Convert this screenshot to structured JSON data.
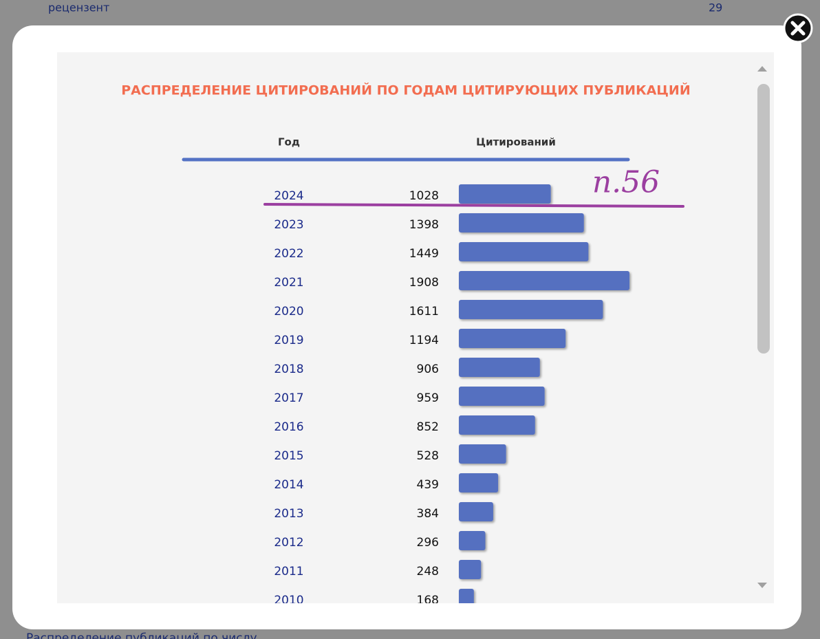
{
  "background": {
    "top_label": "рецензент",
    "top_value": "29",
    "bottom_label": "Распределение публикаций по числу"
  },
  "modal": {
    "title": "РАСПРЕДЕЛЕНИЕ ЦИТИРОВАНИЙ ПО ГОДАМ ЦИТИРУЮЩИХ ПУБЛИКАЦИЙ",
    "headers": [
      "Год",
      "Цитирований"
    ],
    "annotation": "п.56",
    "rows": [
      {
        "year": "2024",
        "citations": 1028
      },
      {
        "year": "2023",
        "citations": 1398
      },
      {
        "year": "2022",
        "citations": 1449
      },
      {
        "year": "2021",
        "citations": 1908
      },
      {
        "year": "2020",
        "citations": 1611
      },
      {
        "year": "2019",
        "citations": 1194
      },
      {
        "year": "2018",
        "citations": 906
      },
      {
        "year": "2017",
        "citations": 959
      },
      {
        "year": "2016",
        "citations": 852
      },
      {
        "year": "2015",
        "citations": 528
      },
      {
        "year": "2014",
        "citations": 439
      },
      {
        "year": "2013",
        "citations": 384
      },
      {
        "year": "2012",
        "citations": 296
      },
      {
        "year": "2011",
        "citations": 248
      },
      {
        "year": "2010",
        "citations": 168
      }
    ]
  }
}
